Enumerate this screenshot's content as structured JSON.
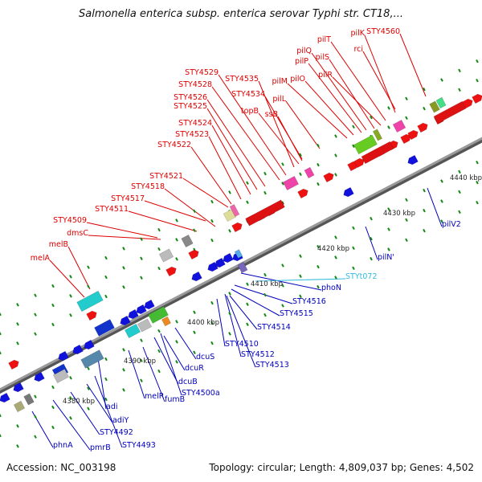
{
  "title": "Salmonella enterica subsp. enterica serovar Typhi str. CT18,...",
  "footer": {
    "accession": "Accession: NC_003198",
    "summary": "Topology: circular; Length: 4,809,037 bp; Genes: 4,502"
  },
  "ruler": [
    "4380 kbp",
    "4390 kbp",
    "4400 kbp",
    "4410 kbp",
    "4420 kbp",
    "4430 kbp",
    "4440 kbp"
  ],
  "colors": {
    "forward_label": "#dd0000",
    "reverse_label": "#0000bb",
    "trna_label": "#33bbdd",
    "backbone": "#9a9a9a",
    "tick": "#118811"
  },
  "forward_labels": [
    "melA",
    "melB",
    "dmsC",
    "STY4509",
    "STY4511",
    "STY4517",
    "STY4518",
    "STY4521",
    "STY4522",
    "STY4523",
    "STY4524",
    "STY4525",
    "STY4526",
    "STY4528",
    "STY4529",
    "STY4534",
    "STY4535",
    "topB",
    "ssB",
    "pilL",
    "pilM",
    "pilO",
    "pilP",
    "pilQ",
    "pilS",
    "pilR",
    "pilT",
    "pilK",
    "rci",
    "STY4560"
  ],
  "reverse_labels": [
    "phnA",
    "pmrB",
    "STY4492",
    "adiY",
    "STY4493",
    "adi",
    "melR",
    "fumB",
    "dcuB",
    "STY4500a",
    "dcuR",
    "dcuS",
    "STY4510",
    "STY4512",
    "STY4513",
    "STY4514",
    "STY4515",
    "STY4516",
    "phoN",
    "pilN'",
    "pilV2"
  ],
  "trna_labels": [
    "STYt072"
  ]
}
